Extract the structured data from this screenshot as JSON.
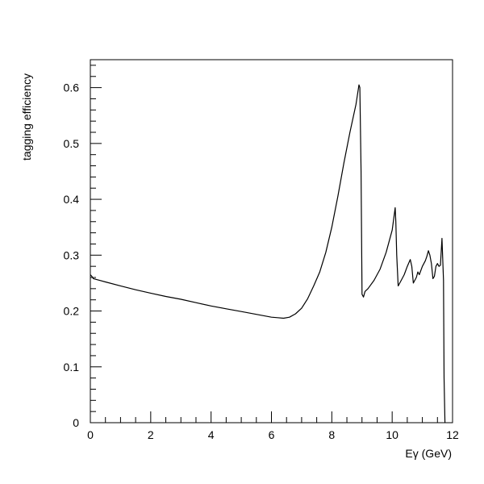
{
  "chart_data": {
    "type": "line",
    "title": "",
    "xlabel": "Eγ (GeV)",
    "ylabel": "tagging efficiency",
    "xlim": [
      0,
      12
    ],
    "ylim": [
      0,
      0.65
    ],
    "grid": false,
    "x_ticks": [
      0,
      2,
      4,
      6,
      8,
      10,
      12
    ],
    "x_tick_labels": [
      "0",
      "2",
      "4",
      "6",
      "8",
      "10",
      "12"
    ],
    "y_ticks": [
      0,
      0.1,
      0.2,
      0.3,
      0.4,
      0.5,
      0.6
    ],
    "y_tick_labels": [
      "0",
      "0.1",
      "0.2",
      "0.3",
      "0.4",
      "0.5",
      "0.6"
    ],
    "series": [
      {
        "x": [
          0.0,
          0.05,
          0.1,
          0.5,
          1.0,
          1.5,
          2.0,
          2.5,
          3.0,
          3.5,
          4.0,
          4.5,
          5.0,
          5.5,
          6.0,
          6.2,
          6.4,
          6.6,
          6.8,
          7.0,
          7.2,
          7.4,
          7.6,
          7.8,
          8.0,
          8.2,
          8.4,
          8.6,
          8.8,
          8.9,
          8.93,
          8.97,
          9.0,
          9.05,
          9.1,
          9.2,
          9.4,
          9.6,
          9.8,
          10.0,
          10.1,
          10.12,
          10.15,
          10.2,
          10.3,
          10.4,
          10.5,
          10.6,
          10.65,
          10.7,
          10.8,
          10.85,
          10.9,
          11.0,
          11.1,
          11.15,
          11.2,
          11.25,
          11.3,
          11.35,
          11.4,
          11.45,
          11.5,
          11.55,
          11.6,
          11.65,
          11.7,
          11.72,
          11.75
        ],
        "y": [
          0.265,
          0.262,
          0.258,
          0.252,
          0.245,
          0.238,
          0.232,
          0.226,
          0.221,
          0.215,
          0.209,
          0.204,
          0.199,
          0.194,
          0.189,
          0.188,
          0.187,
          0.189,
          0.195,
          0.205,
          0.222,
          0.245,
          0.27,
          0.305,
          0.35,
          0.405,
          0.465,
          0.52,
          0.57,
          0.605,
          0.6,
          0.45,
          0.23,
          0.225,
          0.235,
          0.24,
          0.255,
          0.275,
          0.305,
          0.345,
          0.385,
          0.36,
          0.3,
          0.245,
          0.255,
          0.265,
          0.28,
          0.292,
          0.28,
          0.25,
          0.26,
          0.27,
          0.265,
          0.28,
          0.29,
          0.298,
          0.308,
          0.3,
          0.285,
          0.258,
          0.262,
          0.28,
          0.285,
          0.28,
          0.282,
          0.33,
          0.255,
          0.08,
          0.0
        ]
      }
    ]
  }
}
